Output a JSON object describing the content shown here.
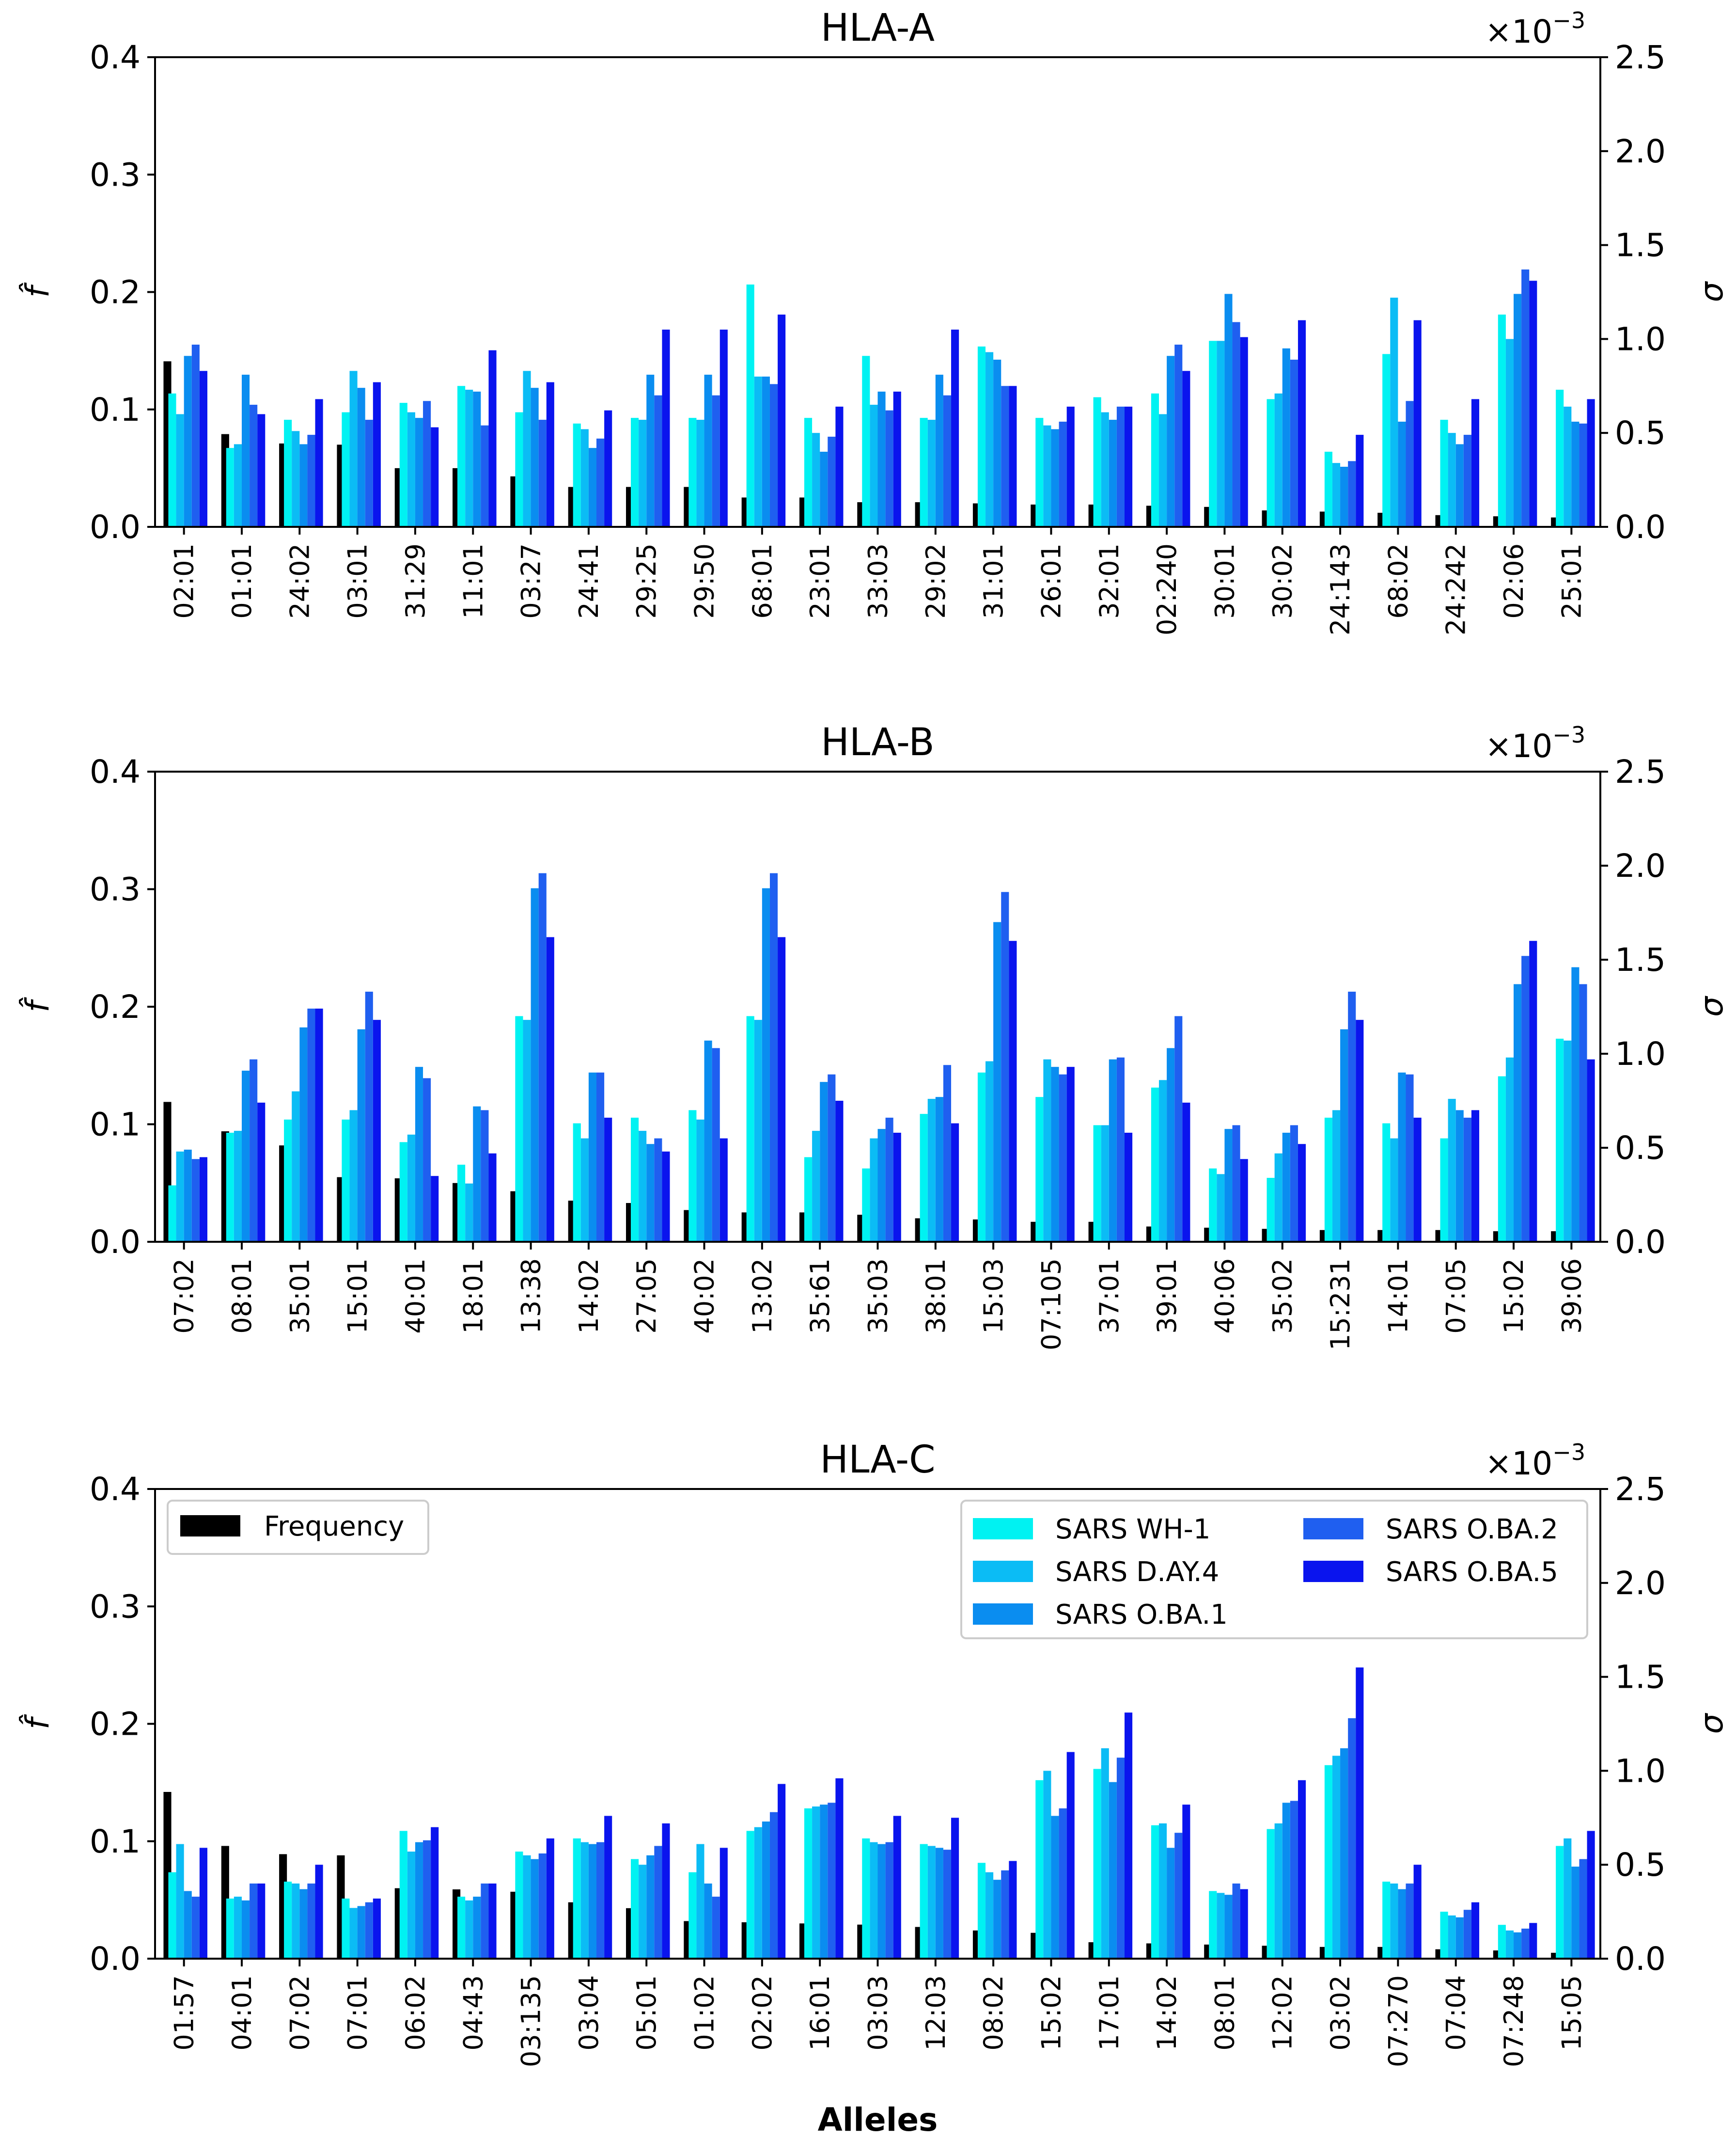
{
  "chart_data": [
    {
      "type": "bar",
      "title": "HLA-A",
      "ylabel_left": "f̂",
      "ylabel_right": "σ",
      "ylim_left": [
        0,
        0.4
      ],
      "ylim_right": [
        0,
        2.5
      ],
      "yticks_left": [
        "0.0",
        "0.1",
        "0.2",
        "0.3",
        "0.4"
      ],
      "yticks_right": [
        "0.0",
        "0.5",
        "1.0",
        "1.5",
        "2.0",
        "2.5"
      ],
      "right_multiplier_base": "×10",
      "right_multiplier_exp": "−3",
      "categories": [
        "02:01",
        "01:01",
        "24:02",
        "03:01",
        "31:29",
        "11:01",
        "03:27",
        "24:41",
        "29:25",
        "29:50",
        "68:01",
        "23:01",
        "33:03",
        "29:02",
        "31:01",
        "26:01",
        "32:01",
        "02:240",
        "30:01",
        "30:02",
        "24:143",
        "68:02",
        "24:242",
        "02:06",
        "25:01"
      ],
      "frequency": [
        0.141,
        0.079,
        0.071,
        0.07,
        0.05,
        0.05,
        0.043,
        0.034,
        0.034,
        0.034,
        0.025,
        0.025,
        0.021,
        0.021,
        0.02,
        0.019,
        0.019,
        0.018,
        0.017,
        0.014,
        0.013,
        0.012,
        0.01,
        0.009,
        0.008
      ],
      "series": [
        {
          "name": "SARS WH-1",
          "values": [
            0.71,
            0.42,
            0.57,
            0.61,
            0.66,
            0.75,
            0.61,
            0.55,
            0.58,
            0.58,
            1.29,
            0.58,
            0.91,
            0.58,
            0.96,
            0.58,
            0.69,
            0.71,
            0.99,
            0.68,
            0.4,
            0.92,
            0.57,
            1.13,
            0.73
          ]
        },
        {
          "name": "SARS D.AY.4",
          "values": [
            0.6,
            0.44,
            0.51,
            0.83,
            0.61,
            0.73,
            0.83,
            0.52,
            0.57,
            0.57,
            0.8,
            0.5,
            0.65,
            0.57,
            0.93,
            0.54,
            0.61,
            0.6,
            0.99,
            0.71,
            0.34,
            1.22,
            0.5,
            1.0,
            0.64
          ]
        },
        {
          "name": "SARS O.BA.1",
          "values": [
            0.91,
            0.81,
            0.44,
            0.74,
            0.58,
            0.72,
            0.74,
            0.42,
            0.81,
            0.81,
            0.8,
            0.4,
            0.72,
            0.81,
            0.89,
            0.52,
            0.57,
            0.91,
            1.24,
            0.95,
            0.32,
            0.56,
            0.44,
            1.24,
            0.56
          ]
        },
        {
          "name": "SARS O.BA.2",
          "values": [
            0.97,
            0.65,
            0.49,
            0.57,
            0.67,
            0.54,
            0.57,
            0.47,
            0.7,
            0.7,
            0.76,
            0.48,
            0.62,
            0.7,
            0.75,
            0.56,
            0.64,
            0.97,
            1.09,
            0.89,
            0.35,
            0.67,
            0.49,
            1.37,
            0.55
          ]
        },
        {
          "name": "SARS O.BA.5",
          "values": [
            0.83,
            0.6,
            0.68,
            0.77,
            0.53,
            0.94,
            0.77,
            0.62,
            1.05,
            1.05,
            1.13,
            0.64,
            0.72,
            1.05,
            0.75,
            0.64,
            0.64,
            0.83,
            1.01,
            1.1,
            0.49,
            1.1,
            0.68,
            1.31,
            0.68
          ]
        }
      ]
    },
    {
      "type": "bar",
      "title": "HLA-B",
      "ylabel_left": "f̂",
      "ylabel_right": "σ",
      "ylim_left": [
        0,
        0.4
      ],
      "ylim_right": [
        0,
        2.5
      ],
      "yticks_left": [
        "0.0",
        "0.1",
        "0.2",
        "0.3",
        "0.4"
      ],
      "yticks_right": [
        "0.0",
        "0.5",
        "1.0",
        "1.5",
        "2.0",
        "2.5"
      ],
      "right_multiplier_base": "×10",
      "right_multiplier_exp": "−3",
      "categories": [
        "07:02",
        "08:01",
        "35:01",
        "15:01",
        "40:01",
        "18:01",
        "13:38",
        "14:02",
        "27:05",
        "40:02",
        "13:02",
        "35:61",
        "35:03",
        "38:01",
        "15:03",
        "07:105",
        "37:01",
        "39:01",
        "40:06",
        "35:02",
        "15:231",
        "14:01",
        "07:05",
        "15:02",
        "39:06"
      ],
      "frequency": [
        0.119,
        0.094,
        0.082,
        0.055,
        0.054,
        0.05,
        0.043,
        0.035,
        0.033,
        0.027,
        0.025,
        0.025,
        0.023,
        0.02,
        0.019,
        0.017,
        0.017,
        0.013,
        0.012,
        0.011,
        0.01,
        0.01,
        0.01,
        0.009,
        0.009
      ],
      "series": [
        {
          "name": "SARS WH-1",
          "values": [
            0.3,
            0.58,
            0.65,
            0.65,
            0.53,
            0.41,
            1.2,
            0.63,
            0.66,
            0.7,
            1.2,
            0.45,
            0.39,
            0.68,
            0.9,
            0.77,
            0.62,
            0.82,
            0.39,
            0.34,
            0.66,
            0.63,
            0.55,
            0.88,
            1.08
          ]
        },
        {
          "name": "SARS D.AY.4",
          "values": [
            0.48,
            0.59,
            0.8,
            0.7,
            0.57,
            0.31,
            1.18,
            0.55,
            0.59,
            0.65,
            1.18,
            0.59,
            0.55,
            0.76,
            0.96,
            0.97,
            0.62,
            0.86,
            0.36,
            0.47,
            0.7,
            0.55,
            0.76,
            0.98,
            1.07
          ]
        },
        {
          "name": "SARS O.BA.1",
          "values": [
            0.49,
            0.91,
            1.14,
            1.13,
            0.93,
            0.72,
            1.88,
            0.9,
            0.52,
            1.07,
            1.88,
            0.85,
            0.6,
            0.77,
            1.7,
            0.93,
            0.97,
            1.03,
            0.6,
            0.58,
            1.13,
            0.9,
            0.7,
            1.37,
            1.46
          ]
        },
        {
          "name": "SARS O.BA.2",
          "values": [
            0.44,
            0.97,
            1.24,
            1.33,
            0.87,
            0.7,
            1.96,
            0.9,
            0.55,
            1.03,
            1.96,
            0.89,
            0.66,
            0.94,
            1.86,
            0.89,
            0.98,
            1.2,
            0.62,
            0.62,
            1.33,
            0.89,
            0.66,
            1.52,
            1.37
          ]
        },
        {
          "name": "SARS O.BA.5",
          "values": [
            0.45,
            0.74,
            1.24,
            1.18,
            0.35,
            0.47,
            1.62,
            0.66,
            0.48,
            0.55,
            1.62,
            0.75,
            0.58,
            0.63,
            1.6,
            0.93,
            0.58,
            0.74,
            0.44,
            0.52,
            1.18,
            0.66,
            0.7,
            1.6,
            0.97
          ]
        }
      ]
    },
    {
      "type": "bar",
      "title": "HLA-C",
      "ylabel_left": "f̂",
      "ylabel_right": "σ",
      "ylim_left": [
        0,
        0.4
      ],
      "ylim_right": [
        0,
        2.5
      ],
      "yticks_left": [
        "0.0",
        "0.1",
        "0.2",
        "0.3",
        "0.4"
      ],
      "yticks_right": [
        "0.0",
        "0.5",
        "1.0",
        "1.5",
        "2.0",
        "2.5"
      ],
      "right_multiplier_base": "×10",
      "right_multiplier_exp": "−3",
      "xlabel": "Alleles",
      "categories": [
        "01:57",
        "04:01",
        "07:02",
        "07:01",
        "06:02",
        "04:43",
        "03:135",
        "03:04",
        "05:01",
        "01:02",
        "02:02",
        "16:01",
        "03:03",
        "12:03",
        "08:02",
        "15:02",
        "17:01",
        "14:02",
        "08:01",
        "12:02",
        "03:02",
        "07:270",
        "07:04",
        "07:248",
        "15:05"
      ],
      "frequency": [
        0.142,
        0.096,
        0.089,
        0.088,
        0.06,
        0.059,
        0.057,
        0.048,
        0.043,
        0.032,
        0.031,
        0.03,
        0.029,
        0.027,
        0.024,
        0.022,
        0.014,
        0.013,
        0.012,
        0.011,
        0.01,
        0.01,
        0.008,
        0.007,
        0.005
      ],
      "series": [
        {
          "name": "SARS WH-1",
          "values": [
            0.46,
            0.32,
            0.41,
            0.32,
            0.68,
            0.33,
            0.57,
            0.64,
            0.53,
            0.46,
            0.68,
            0.8,
            0.64,
            0.61,
            0.51,
            0.95,
            1.01,
            0.71,
            0.36,
            0.69,
            1.03,
            0.41,
            0.25,
            0.18,
            0.6
          ]
        },
        {
          "name": "SARS D.AY.4",
          "values": [
            0.61,
            0.33,
            0.4,
            0.27,
            0.57,
            0.31,
            0.55,
            0.62,
            0.5,
            0.61,
            0.7,
            0.81,
            0.62,
            0.6,
            0.46,
            1.0,
            1.12,
            0.72,
            0.35,
            0.72,
            1.08,
            0.4,
            0.23,
            0.15,
            0.64
          ]
        },
        {
          "name": "SARS O.BA.1",
          "values": [
            0.36,
            0.31,
            0.37,
            0.28,
            0.62,
            0.33,
            0.53,
            0.61,
            0.55,
            0.4,
            0.73,
            0.82,
            0.61,
            0.59,
            0.42,
            0.76,
            0.94,
            0.59,
            0.34,
            0.83,
            1.12,
            0.37,
            0.22,
            0.14,
            0.49
          ]
        },
        {
          "name": "SARS O.BA.2",
          "values": [
            0.33,
            0.4,
            0.4,
            0.3,
            0.63,
            0.4,
            0.56,
            0.62,
            0.6,
            0.33,
            0.78,
            0.83,
            0.62,
            0.58,
            0.47,
            0.8,
            1.07,
            0.67,
            0.4,
            0.84,
            1.28,
            0.4,
            0.26,
            0.16,
            0.53
          ]
        },
        {
          "name": "SARS O.BA.5",
          "values": [
            0.59,
            0.4,
            0.5,
            0.32,
            0.7,
            0.4,
            0.64,
            0.76,
            0.72,
            0.59,
            0.93,
            0.96,
            0.76,
            0.75,
            0.52,
            1.1,
            1.31,
            0.82,
            0.37,
            0.95,
            1.55,
            0.5,
            0.3,
            0.19,
            0.68
          ]
        }
      ],
      "legends": [
        {
          "position": "upper-left",
          "entries": [
            {
              "label": "Frequency",
              "key": "frequency"
            }
          ]
        },
        {
          "position": "upper-right",
          "ncol": 2,
          "entries": [
            {
              "label": "SARS WH-1",
              "key": 0
            },
            {
              "label": "SARS D.AY.4",
              "key": 1
            },
            {
              "label": "SARS O.BA.1",
              "key": 2
            },
            {
              "label": "SARS O.BA.2",
              "key": 3
            },
            {
              "label": "SARS O.BA.5",
              "key": 4
            }
          ]
        }
      ]
    }
  ],
  "colors": {
    "frequency": "#000000",
    "series": [
      "#00f2f2",
      "#0bbcf5",
      "#0a8df0",
      "#1f5ff0",
      "#0a14ee"
    ],
    "axis": "#000000",
    "legend_border": "#cccccc"
  }
}
